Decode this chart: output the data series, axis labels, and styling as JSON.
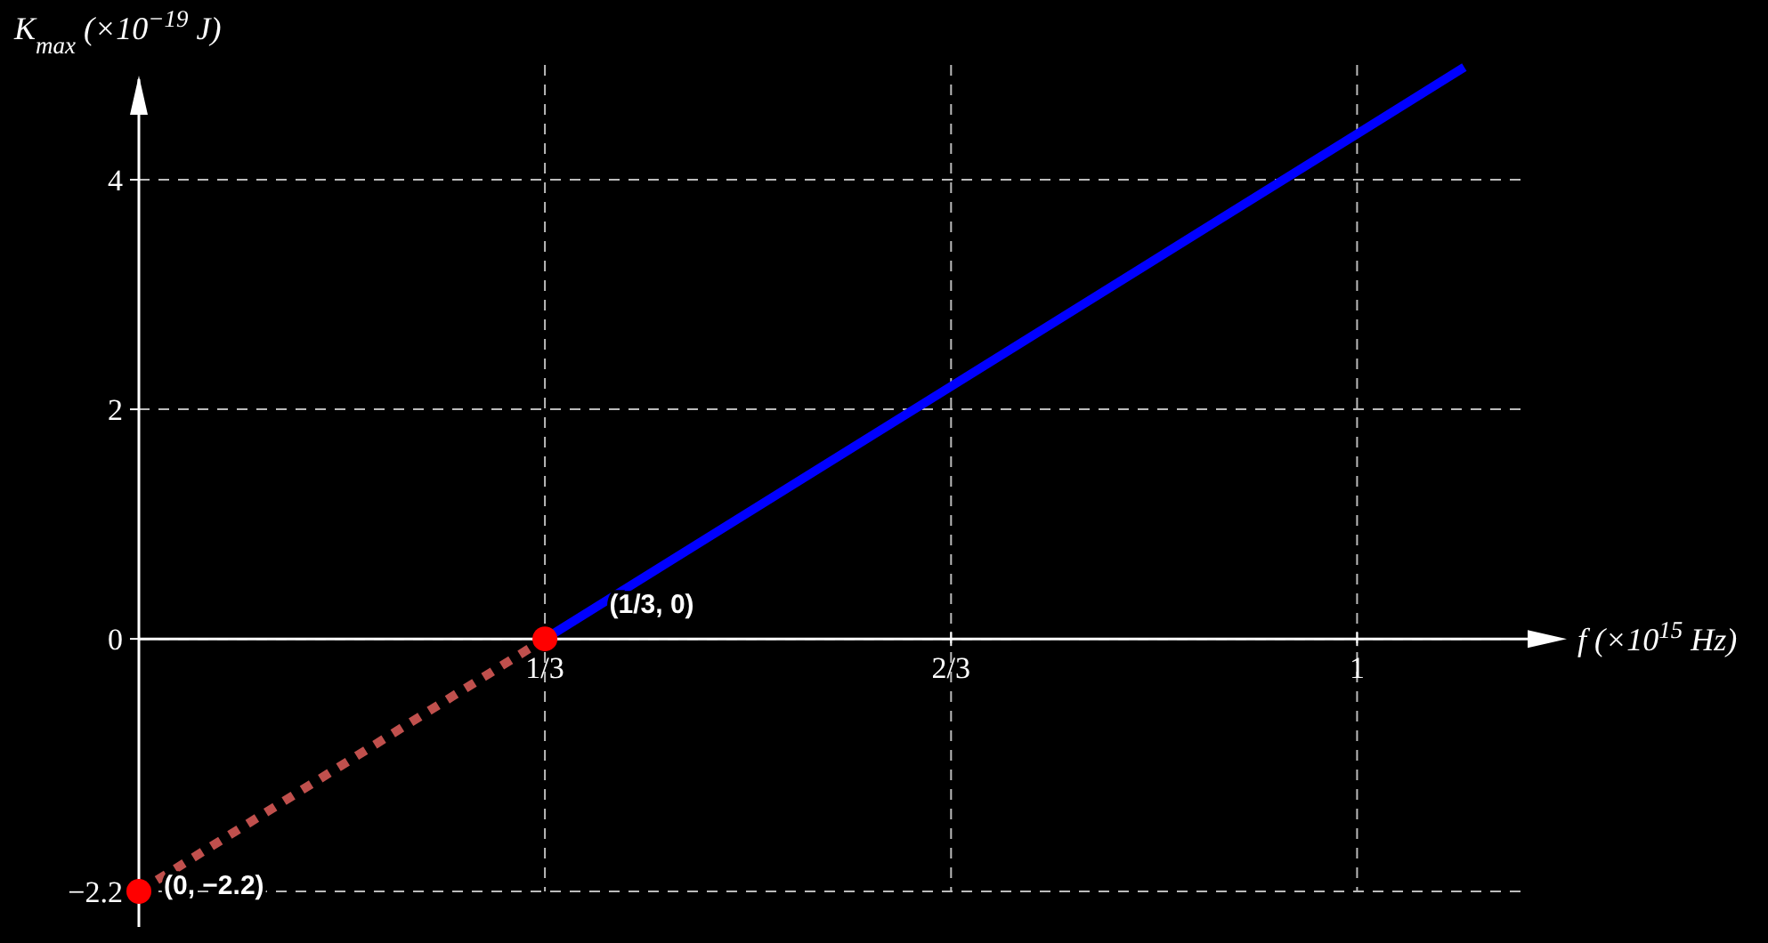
{
  "chart_data": {
    "type": "line",
    "xlabel": "f (×10$^{15}$ Hz)",
    "ylabel": "K$_{max}$ (×10$^{−19}$ J)",
    "xlim": [
      0,
      1.14
    ],
    "ylim": [
      -2.2,
      5.0
    ],
    "xticks": [
      {
        "value": 0.3333,
        "label": "1/3"
      },
      {
        "value": 0.6667,
        "label": "2/3"
      },
      1
    ],
    "yticks": [
      {
        "value": -2.2,
        "label": "−2.2"
      },
      0,
      2,
      4
    ],
    "grid": true,
    "series": [
      {
        "color": "#0000ff",
        "x": [
          0.3333,
          1.088
        ],
        "values": [
          0,
          4.98
        ],
        "line_style": "solid"
      },
      {
        "color": "#c0504d",
        "x": [
          0,
          0.3333
        ],
        "values": [
          -2.2,
          0
        ],
        "line_style": "dotted"
      },
      {
        "type": "scatter",
        "color": "#ff0000",
        "x": [
          0,
          0.3333
        ],
        "values": [
          -2.2,
          0
        ],
        "marker": "circle"
      }
    ],
    "annotations": [
      {
        "text": "(0, −2.2)",
        "x": 0,
        "y": -2.2
      },
      {
        "text": "(1/3, 0)",
        "x": 0.3333,
        "y": 0
      }
    ]
  }
}
